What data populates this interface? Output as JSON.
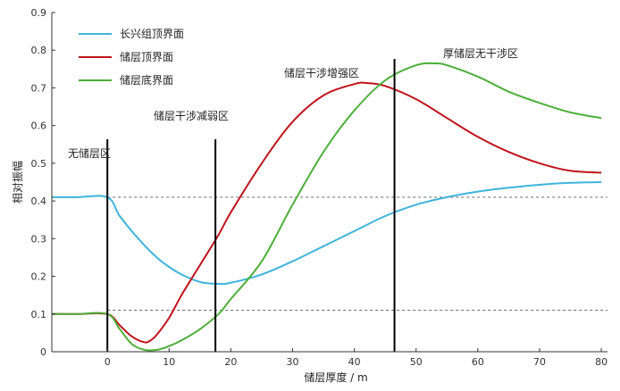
{
  "chart_data": {
    "type": "line",
    "xlabel": "储层厚度 / m",
    "ylabel": "相对振幅",
    "xlim": [
      -9,
      81
    ],
    "ylim": [
      0,
      0.9
    ],
    "xticks": [
      "0",
      "10",
      "20",
      "30",
      "40",
      "50",
      "60",
      "70",
      "80"
    ],
    "yticks": [
      "0",
      "0.1",
      "0.2",
      "0.3",
      "0.4",
      "0.5",
      "0.6",
      "0.7",
      "0.8",
      "0.9"
    ],
    "legend_position": "top-left",
    "series": [
      {
        "name": "长兴组顶界面",
        "color": "#3fb4dc",
        "x": [
          -9,
          -5,
          0,
          2,
          5,
          8,
          10,
          12,
          15,
          18,
          20,
          25,
          30,
          35,
          40,
          45,
          50,
          55,
          60,
          65,
          70,
          75,
          80
        ],
        "y": [
          0.41,
          0.41,
          0.41,
          0.36,
          0.3,
          0.25,
          0.225,
          0.205,
          0.185,
          0.18,
          0.183,
          0.205,
          0.24,
          0.28,
          0.32,
          0.36,
          0.39,
          0.41,
          0.425,
          0.435,
          0.443,
          0.448,
          0.45
        ]
      },
      {
        "name": "储层顶界面",
        "color": "#c0141b",
        "x": [
          -9,
          -5,
          0,
          2,
          4,
          6,
          7,
          8,
          10,
          12,
          15,
          18,
          20,
          25,
          30,
          35,
          40,
          42,
          45,
          50,
          55,
          60,
          65,
          70,
          75,
          80
        ],
        "y": [
          0.1,
          0.1,
          0.1,
          0.07,
          0.04,
          0.025,
          0.03,
          0.045,
          0.09,
          0.15,
          0.23,
          0.31,
          0.37,
          0.5,
          0.61,
          0.68,
          0.71,
          0.713,
          0.705,
          0.67,
          0.62,
          0.57,
          0.53,
          0.5,
          0.48,
          0.475
        ]
      },
      {
        "name": "储层底界面",
        "color": "#4caf3a",
        "x": [
          -9,
          -5,
          0,
          2,
          4,
          6,
          8,
          10,
          12,
          15,
          18,
          20,
          25,
          30,
          35,
          40,
          45,
          50,
          53,
          55,
          60,
          65,
          70,
          75,
          80
        ],
        "y": [
          0.1,
          0.1,
          0.1,
          0.06,
          0.02,
          0.005,
          0.005,
          0.015,
          0.03,
          0.06,
          0.1,
          0.14,
          0.24,
          0.39,
          0.53,
          0.64,
          0.72,
          0.76,
          0.765,
          0.76,
          0.73,
          0.69,
          0.66,
          0.635,
          0.62
        ]
      }
    ],
    "reference_lines": [
      {
        "value": 0.41,
        "style": "dashed"
      },
      {
        "value": 0.11,
        "style": "dashed"
      }
    ],
    "vertical_lines": [
      0,
      17.5,
      46.5
    ],
    "annotations": [
      "无储层区",
      "储层干涉减弱区",
      "储层干涉增强区",
      "厚储层无干涉区"
    ]
  }
}
